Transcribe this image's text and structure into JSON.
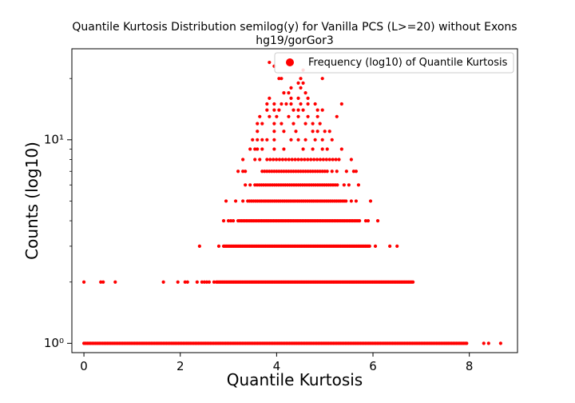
{
  "chart_data": {
    "type": "scatter",
    "title": "Quantile Kurtosis Distribution semilog(y) for Vanilla PCS (L>=20) without Exons",
    "subtitle": "hg19/gorGor3",
    "xlabel": "Quantile Kurtosis",
    "ylabel": "Counts (log10)",
    "xlim": [
      -0.25,
      9.0
    ],
    "ylim": [
      0.9,
      28.0
    ],
    "yscale": "log",
    "xticks": [
      "0",
      "2",
      "4",
      "6",
      "8"
    ],
    "yticks": [
      "10⁰",
      "10¹"
    ],
    "grid": false,
    "legend_position": "top-right",
    "series": [
      {
        "name": "Frequency (log10) of Quantile Kurtosis",
        "color": "#ff0000",
        "segments": [
          {
            "y": 1,
            "x_from": 0.0,
            "x_to": 7.95,
            "step": 0.035
          },
          {
            "y": 2,
            "x_from": 2.75,
            "x_to": 6.85,
            "step": 0.03
          },
          {
            "y": 3,
            "x_from": 2.9,
            "x_to": 5.95,
            "step": 0.03
          },
          {
            "y": 4,
            "x_from": 3.2,
            "x_to": 5.75,
            "step": 0.035
          },
          {
            "y": 5,
            "x_from": 3.4,
            "x_to": 5.45,
            "step": 0.04
          },
          {
            "y": 6,
            "x_from": 3.55,
            "x_to": 5.3,
            "step": 0.045
          },
          {
            "y": 7,
            "x_from": 3.7,
            "x_to": 5.05,
            "step": 0.05
          },
          {
            "y": 8,
            "x_from": 3.8,
            "x_to": 5.35,
            "step": 0.065
          }
        ],
        "points": [
          {
            "x": 0.0,
            "y": 2
          },
          {
            "x": 0.35,
            "y": 2
          },
          {
            "x": 0.4,
            "y": 2
          },
          {
            "x": 0.65,
            "y": 2
          },
          {
            "x": 1.65,
            "y": 2
          },
          {
            "x": 1.95,
            "y": 2
          },
          {
            "x": 2.1,
            "y": 2
          },
          {
            "x": 2.15,
            "y": 2
          },
          {
            "x": 2.35,
            "y": 2
          },
          {
            "x": 2.45,
            "y": 2
          },
          {
            "x": 2.5,
            "y": 2
          },
          {
            "x": 2.55,
            "y": 2
          },
          {
            "x": 2.6,
            "y": 2
          },
          {
            "x": 2.7,
            "y": 2
          },
          {
            "x": 2.4,
            "y": 3
          },
          {
            "x": 2.8,
            "y": 3
          },
          {
            "x": 6.05,
            "y": 3
          },
          {
            "x": 6.35,
            "y": 3
          },
          {
            "x": 6.5,
            "y": 3
          },
          {
            "x": 2.9,
            "y": 4
          },
          {
            "x": 3.0,
            "y": 4
          },
          {
            "x": 3.05,
            "y": 4
          },
          {
            "x": 3.1,
            "y": 4
          },
          {
            "x": 5.85,
            "y": 4
          },
          {
            "x": 5.9,
            "y": 4
          },
          {
            "x": 6.1,
            "y": 4
          },
          {
            "x": 2.95,
            "y": 5
          },
          {
            "x": 3.15,
            "y": 5
          },
          {
            "x": 3.3,
            "y": 5
          },
          {
            "x": 5.55,
            "y": 5
          },
          {
            "x": 5.65,
            "y": 5
          },
          {
            "x": 5.95,
            "y": 5
          },
          {
            "x": 3.35,
            "y": 6
          },
          {
            "x": 3.45,
            "y": 6
          },
          {
            "x": 5.4,
            "y": 6
          },
          {
            "x": 5.5,
            "y": 6
          },
          {
            "x": 5.7,
            "y": 6
          },
          {
            "x": 3.2,
            "y": 7
          },
          {
            "x": 3.3,
            "y": 7
          },
          {
            "x": 3.35,
            "y": 7
          },
          {
            "x": 5.15,
            "y": 7
          },
          {
            "x": 5.25,
            "y": 7
          },
          {
            "x": 5.45,
            "y": 7
          },
          {
            "x": 5.6,
            "y": 7
          },
          {
            "x": 5.65,
            "y": 7
          },
          {
            "x": 3.3,
            "y": 8
          },
          {
            "x": 3.55,
            "y": 8
          },
          {
            "x": 3.65,
            "y": 8
          },
          {
            "x": 5.55,
            "y": 8
          },
          {
            "x": 3.45,
            "y": 9
          },
          {
            "x": 3.55,
            "y": 9
          },
          {
            "x": 3.6,
            "y": 9
          },
          {
            "x": 3.7,
            "y": 9
          },
          {
            "x": 3.95,
            "y": 9
          },
          {
            "x": 4.15,
            "y": 9
          },
          {
            "x": 4.55,
            "y": 9
          },
          {
            "x": 4.75,
            "y": 9
          },
          {
            "x": 4.95,
            "y": 9
          },
          {
            "x": 5.05,
            "y": 9
          },
          {
            "x": 5.35,
            "y": 9
          },
          {
            "x": 3.5,
            "y": 10
          },
          {
            "x": 3.6,
            "y": 10
          },
          {
            "x": 3.7,
            "y": 10
          },
          {
            "x": 3.8,
            "y": 10
          },
          {
            "x": 3.95,
            "y": 10
          },
          {
            "x": 4.3,
            "y": 10
          },
          {
            "x": 4.45,
            "y": 10
          },
          {
            "x": 4.6,
            "y": 10
          },
          {
            "x": 4.8,
            "y": 10
          },
          {
            "x": 4.95,
            "y": 10
          },
          {
            "x": 5.15,
            "y": 10
          },
          {
            "x": 3.6,
            "y": 11
          },
          {
            "x": 3.95,
            "y": 11
          },
          {
            "x": 4.15,
            "y": 11
          },
          {
            "x": 4.4,
            "y": 11
          },
          {
            "x": 4.75,
            "y": 11
          },
          {
            "x": 4.85,
            "y": 11
          },
          {
            "x": 5.0,
            "y": 11
          },
          {
            "x": 5.1,
            "y": 11
          },
          {
            "x": 3.6,
            "y": 12
          },
          {
            "x": 3.7,
            "y": 12
          },
          {
            "x": 3.95,
            "y": 12
          },
          {
            "x": 4.1,
            "y": 12
          },
          {
            "x": 4.35,
            "y": 12
          },
          {
            "x": 4.6,
            "y": 12
          },
          {
            "x": 4.75,
            "y": 12
          },
          {
            "x": 4.9,
            "y": 12
          },
          {
            "x": 3.65,
            "y": 13
          },
          {
            "x": 3.85,
            "y": 13
          },
          {
            "x": 4.0,
            "y": 13
          },
          {
            "x": 4.25,
            "y": 13
          },
          {
            "x": 4.45,
            "y": 13
          },
          {
            "x": 4.65,
            "y": 13
          },
          {
            "x": 4.85,
            "y": 13
          },
          {
            "x": 5.25,
            "y": 13
          },
          {
            "x": 3.8,
            "y": 14
          },
          {
            "x": 3.95,
            "y": 14
          },
          {
            "x": 4.05,
            "y": 14
          },
          {
            "x": 4.35,
            "y": 14
          },
          {
            "x": 4.45,
            "y": 14
          },
          {
            "x": 4.55,
            "y": 14
          },
          {
            "x": 4.85,
            "y": 14
          },
          {
            "x": 4.95,
            "y": 14
          },
          {
            "x": 3.8,
            "y": 15
          },
          {
            "x": 3.95,
            "y": 15
          },
          {
            "x": 4.1,
            "y": 15
          },
          {
            "x": 4.2,
            "y": 15
          },
          {
            "x": 4.3,
            "y": 15
          },
          {
            "x": 4.5,
            "y": 15
          },
          {
            "x": 4.65,
            "y": 15
          },
          {
            "x": 4.8,
            "y": 15
          },
          {
            "x": 5.35,
            "y": 15
          },
          {
            "x": 3.85,
            "y": 16
          },
          {
            "x": 4.3,
            "y": 16
          },
          {
            "x": 4.45,
            "y": 16
          },
          {
            "x": 4.65,
            "y": 16
          },
          {
            "x": 4.15,
            "y": 17
          },
          {
            "x": 4.25,
            "y": 17
          },
          {
            "x": 4.6,
            "y": 17
          },
          {
            "x": 4.3,
            "y": 18
          },
          {
            "x": 4.5,
            "y": 18
          },
          {
            "x": 4.45,
            "y": 19
          },
          {
            "x": 4.55,
            "y": 19
          },
          {
            "x": 4.05,
            "y": 20
          },
          {
            "x": 4.1,
            "y": 20
          },
          {
            "x": 4.5,
            "y": 20
          },
          {
            "x": 4.95,
            "y": 20
          },
          {
            "x": 4.55,
            "y": 22
          },
          {
            "x": 3.95,
            "y": 23
          },
          {
            "x": 3.85,
            "y": 24
          },
          {
            "x": 8.3,
            "y": 1
          },
          {
            "x": 8.4,
            "y": 1
          },
          {
            "x": 8.65,
            "y": 1
          }
        ]
      }
    ]
  }
}
